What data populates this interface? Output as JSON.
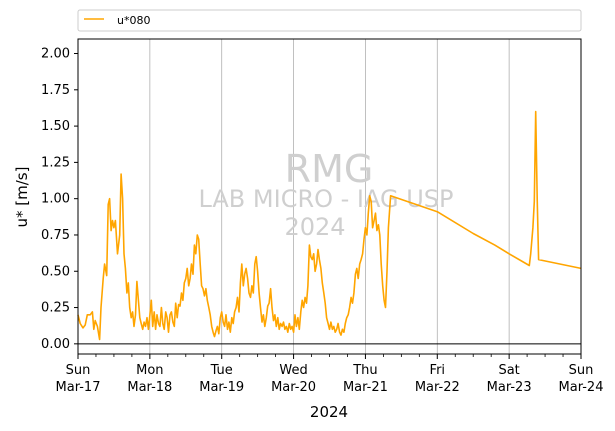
{
  "chart_data": {
    "type": "line",
    "xlabel": "2024",
    "ylabel": "u* [m/s]",
    "ylim": [
      -0.07,
      2.1
    ],
    "xlim": [
      0,
      7
    ],
    "x_unit": "days from Sun Mar-17 2024 00:00",
    "yticks": [
      "0.00",
      "0.25",
      "0.50",
      "0.75",
      "1.00",
      "1.25",
      "1.50",
      "1.75",
      "2.00"
    ],
    "xticks": [
      {
        "day": "Sun",
        "date": "Mar-17"
      },
      {
        "day": "Mon",
        "date": "Mar-18"
      },
      {
        "day": "Tue",
        "date": "Mar-19"
      },
      {
        "day": "Wed",
        "date": "Mar-20"
      },
      {
        "day": "Thu",
        "date": "Mar-21"
      },
      {
        "day": "Fri",
        "date": "Mar-22"
      },
      {
        "day": "Sat",
        "date": "Mar-23"
      },
      {
        "day": "Sun",
        "date": "Mar-24"
      }
    ],
    "grid": "vertical",
    "legend": "top (above plot)",
    "watermark": [
      "RMG",
      "LAB MICRO - IAG USP",
      "2024"
    ],
    "series": [
      {
        "name": "u*080",
        "color": "#ffa500",
        "points": [
          [
            0.0,
            0.2
          ],
          [
            0.03,
            0.14
          ],
          [
            0.07,
            0.11
          ],
          [
            0.1,
            0.13
          ],
          [
            0.13,
            0.2
          ],
          [
            0.17,
            0.2
          ],
          [
            0.2,
            0.22
          ],
          [
            0.22,
            0.1
          ],
          [
            0.24,
            0.16
          ],
          [
            0.27,
            0.12
          ],
          [
            0.3,
            0.03
          ],
          [
            0.32,
            0.25
          ],
          [
            0.35,
            0.45
          ],
          [
            0.37,
            0.55
          ],
          [
            0.4,
            0.47
          ],
          [
            0.42,
            0.96
          ],
          [
            0.44,
            1.0
          ],
          [
            0.46,
            0.78
          ],
          [
            0.48,
            0.85
          ],
          [
            0.5,
            0.8
          ],
          [
            0.52,
            0.85
          ],
          [
            0.55,
            0.62
          ],
          [
            0.58,
            0.75
          ],
          [
            0.6,
            1.17
          ],
          [
            0.62,
            1.0
          ],
          [
            0.64,
            0.62
          ],
          [
            0.66,
            0.52
          ],
          [
            0.68,
            0.35
          ],
          [
            0.7,
            0.42
          ],
          [
            0.72,
            0.25
          ],
          [
            0.74,
            0.18
          ],
          [
            0.76,
            0.22
          ],
          [
            0.78,
            0.12
          ],
          [
            0.8,
            0.2
          ],
          [
            0.82,
            0.43
          ],
          [
            0.84,
            0.3
          ],
          [
            0.86,
            0.18
          ],
          [
            0.88,
            0.14
          ],
          [
            0.9,
            0.1
          ],
          [
            0.92,
            0.15
          ],
          [
            0.94,
            0.12
          ],
          [
            0.96,
            0.18
          ],
          [
            0.98,
            0.1
          ],
          [
            1.0,
            0.2
          ],
          [
            1.02,
            0.3
          ],
          [
            1.04,
            0.12
          ],
          [
            1.06,
            0.22
          ],
          [
            1.08,
            0.1
          ],
          [
            1.1,
            0.2
          ],
          [
            1.12,
            0.14
          ],
          [
            1.14,
            0.12
          ],
          [
            1.16,
            0.25
          ],
          [
            1.18,
            0.14
          ],
          [
            1.2,
            0.1
          ],
          [
            1.22,
            0.22
          ],
          [
            1.24,
            0.18
          ],
          [
            1.26,
            0.08
          ],
          [
            1.28,
            0.2
          ],
          [
            1.3,
            0.22
          ],
          [
            1.32,
            0.15
          ],
          [
            1.34,
            0.12
          ],
          [
            1.36,
            0.28
          ],
          [
            1.38,
            0.18
          ],
          [
            1.4,
            0.27
          ],
          [
            1.42,
            0.26
          ],
          [
            1.44,
            0.35
          ],
          [
            1.46,
            0.3
          ],
          [
            1.48,
            0.42
          ],
          [
            1.5,
            0.45
          ],
          [
            1.52,
            0.52
          ],
          [
            1.54,
            0.4
          ],
          [
            1.56,
            0.45
          ],
          [
            1.58,
            0.55
          ],
          [
            1.6,
            0.48
          ],
          [
            1.62,
            0.68
          ],
          [
            1.64,
            0.62
          ],
          [
            1.66,
            0.75
          ],
          [
            1.68,
            0.72
          ],
          [
            1.7,
            0.55
          ],
          [
            1.72,
            0.4
          ],
          [
            1.74,
            0.38
          ],
          [
            1.76,
            0.33
          ],
          [
            1.78,
            0.38
          ],
          [
            1.8,
            0.3
          ],
          [
            1.82,
            0.25
          ],
          [
            1.84,
            0.2
          ],
          [
            1.86,
            0.12
          ],
          [
            1.88,
            0.08
          ],
          [
            1.9,
            0.05
          ],
          [
            1.92,
            0.09
          ],
          [
            1.94,
            0.12
          ],
          [
            1.96,
            0.07
          ],
          [
            1.98,
            0.18
          ],
          [
            2.0,
            0.22
          ],
          [
            2.02,
            0.15
          ],
          [
            2.04,
            0.12
          ],
          [
            2.06,
            0.2
          ],
          [
            2.08,
            0.1
          ],
          [
            2.1,
            0.15
          ],
          [
            2.12,
            0.08
          ],
          [
            2.14,
            0.18
          ],
          [
            2.16,
            0.14
          ],
          [
            2.18,
            0.22
          ],
          [
            2.2,
            0.25
          ],
          [
            2.22,
            0.32
          ],
          [
            2.24,
            0.22
          ],
          [
            2.26,
            0.42
          ],
          [
            2.28,
            0.55
          ],
          [
            2.3,
            0.4
          ],
          [
            2.32,
            0.48
          ],
          [
            2.34,
            0.52
          ],
          [
            2.36,
            0.45
          ],
          [
            2.38,
            0.35
          ],
          [
            2.4,
            0.32
          ],
          [
            2.42,
            0.4
          ],
          [
            2.44,
            0.35
          ],
          [
            2.46,
            0.55
          ],
          [
            2.48,
            0.6
          ],
          [
            2.5,
            0.5
          ],
          [
            2.52,
            0.35
          ],
          [
            2.54,
            0.25
          ],
          [
            2.56,
            0.15
          ],
          [
            2.58,
            0.2
          ],
          [
            2.6,
            0.12
          ],
          [
            2.62,
            0.18
          ],
          [
            2.64,
            0.26
          ],
          [
            2.66,
            0.28
          ],
          [
            2.68,
            0.38
          ],
          [
            2.7,
            0.25
          ],
          [
            2.72,
            0.16
          ],
          [
            2.74,
            0.2
          ],
          [
            2.76,
            0.12
          ],
          [
            2.78,
            0.18
          ],
          [
            2.8,
            0.1
          ],
          [
            2.82,
            0.14
          ],
          [
            2.84,
            0.12
          ],
          [
            2.86,
            0.15
          ],
          [
            2.88,
            0.1
          ],
          [
            2.9,
            0.12
          ],
          [
            2.92,
            0.08
          ],
          [
            2.94,
            0.14
          ],
          [
            2.96,
            0.1
          ],
          [
            2.98,
            0.12
          ],
          [
            3.0,
            0.08
          ],
          [
            3.02,
            0.2
          ],
          [
            3.04,
            0.12
          ],
          [
            3.06,
            0.18
          ],
          [
            3.08,
            0.1
          ],
          [
            3.1,
            0.22
          ],
          [
            3.12,
            0.3
          ],
          [
            3.14,
            0.25
          ],
          [
            3.16,
            0.32
          ],
          [
            3.18,
            0.28
          ],
          [
            3.2,
            0.4
          ],
          [
            3.22,
            0.68
          ],
          [
            3.24,
            0.6
          ],
          [
            3.26,
            0.58
          ],
          [
            3.28,
            0.62
          ],
          [
            3.3,
            0.5
          ],
          [
            3.32,
            0.55
          ],
          [
            3.34,
            0.65
          ],
          [
            3.36,
            0.58
          ],
          [
            3.38,
            0.52
          ],
          [
            3.4,
            0.42
          ],
          [
            3.42,
            0.35
          ],
          [
            3.44,
            0.28
          ],
          [
            3.46,
            0.18
          ],
          [
            3.48,
            0.14
          ],
          [
            3.5,
            0.1
          ],
          [
            3.52,
            0.15
          ],
          [
            3.54,
            0.1
          ],
          [
            3.56,
            0.12
          ],
          [
            3.58,
            0.08
          ],
          [
            3.6,
            0.1
          ],
          [
            3.62,
            0.14
          ],
          [
            3.64,
            0.08
          ],
          [
            3.66,
            0.06
          ],
          [
            3.68,
            0.1
          ],
          [
            3.7,
            0.08
          ],
          [
            3.72,
            0.14
          ],
          [
            3.74,
            0.18
          ],
          [
            3.76,
            0.2
          ],
          [
            3.78,
            0.25
          ],
          [
            3.8,
            0.32
          ],
          [
            3.82,
            0.28
          ],
          [
            3.84,
            0.35
          ],
          [
            3.86,
            0.48
          ],
          [
            3.88,
            0.52
          ],
          [
            3.9,
            0.45
          ],
          [
            3.92,
            0.55
          ],
          [
            3.94,
            0.58
          ],
          [
            3.96,
            0.62
          ],
          [
            3.98,
            0.72
          ],
          [
            4.0,
            0.8
          ],
          [
            4.02,
            0.75
          ],
          [
            4.04,
            0.9
          ],
          [
            4.06,
            1.02
          ],
          [
            4.08,
            0.98
          ],
          [
            4.1,
            0.8
          ],
          [
            4.12,
            0.85
          ],
          [
            4.14,
            0.9
          ],
          [
            4.16,
            0.78
          ],
          [
            4.18,
            0.82
          ],
          [
            4.2,
            0.75
          ],
          [
            4.22,
            0.55
          ],
          [
            4.24,
            0.4
          ],
          [
            4.26,
            0.3
          ],
          [
            4.28,
            0.25
          ],
          [
            4.3,
            0.5
          ],
          [
            4.32,
            0.8
          ],
          [
            4.35,
            1.02
          ],
          [
            5.0,
            0.91
          ],
          [
            5.5,
            0.76
          ],
          [
            5.8,
            0.68
          ],
          [
            6.0,
            0.62
          ],
          [
            6.28,
            0.54
          ],
          [
            6.3,
            0.62
          ],
          [
            6.33,
            0.8
          ],
          [
            6.35,
            0.98
          ],
          [
            6.37,
            1.6
          ],
          [
            6.39,
            1.0
          ],
          [
            6.41,
            0.58
          ],
          [
            7.0,
            0.52
          ]
        ]
      }
    ]
  }
}
